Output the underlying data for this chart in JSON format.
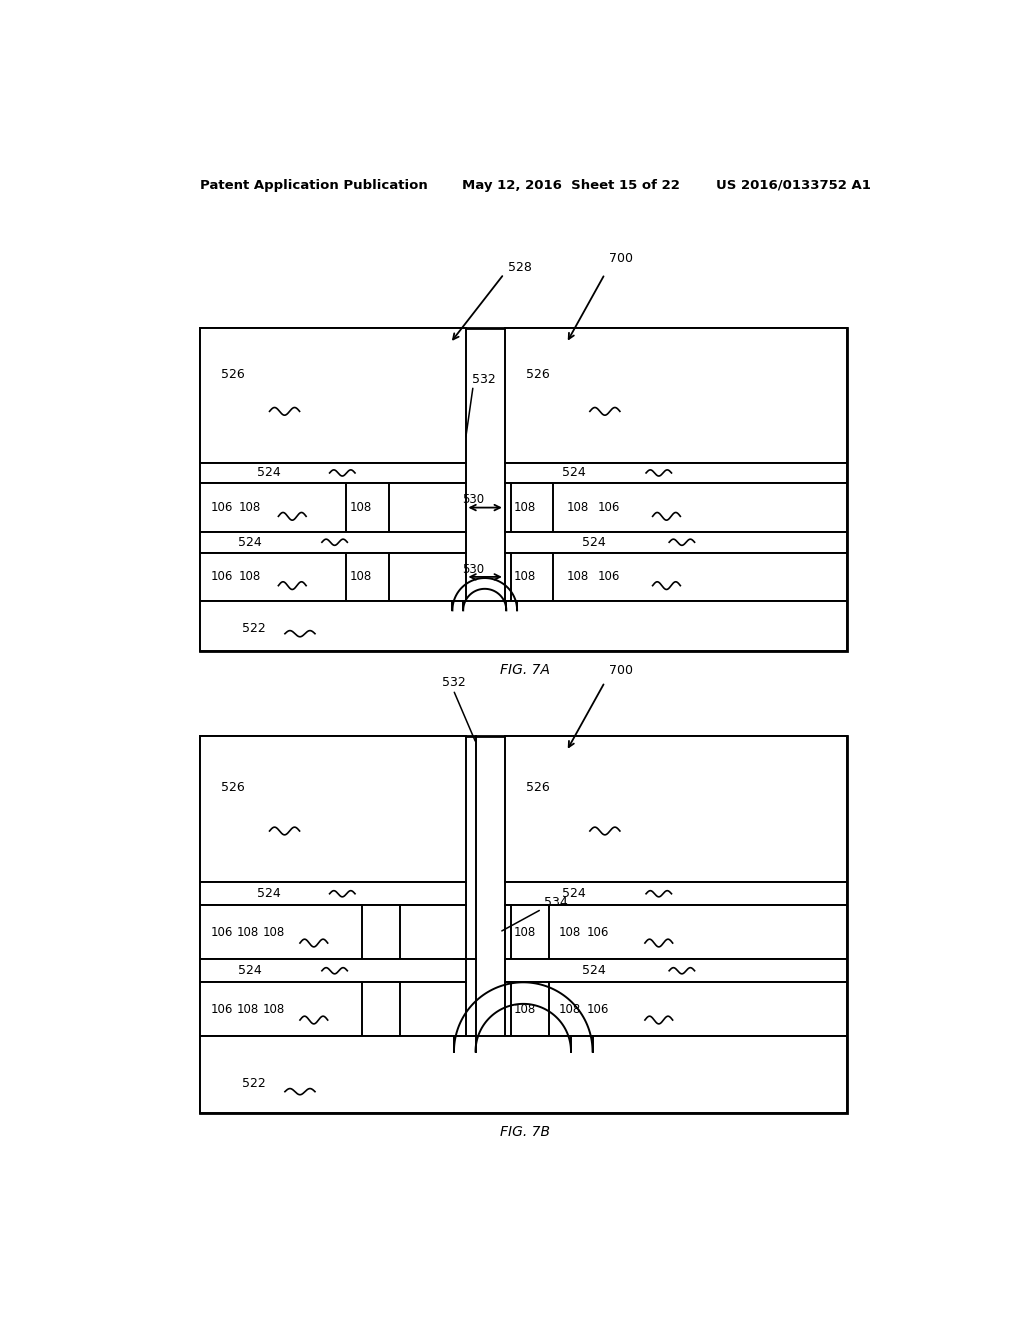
{
  "bg_color": "#ffffff",
  "line_color": "#000000",
  "header_text": "Patent Application Publication",
  "header_date": "May 12, 2016  Sheet 15 of 22",
  "header_patent": "US 2016/0133752 A1",
  "fig_label_a": "FIG. 7A",
  "fig_label_b": "FIG. 7B"
}
